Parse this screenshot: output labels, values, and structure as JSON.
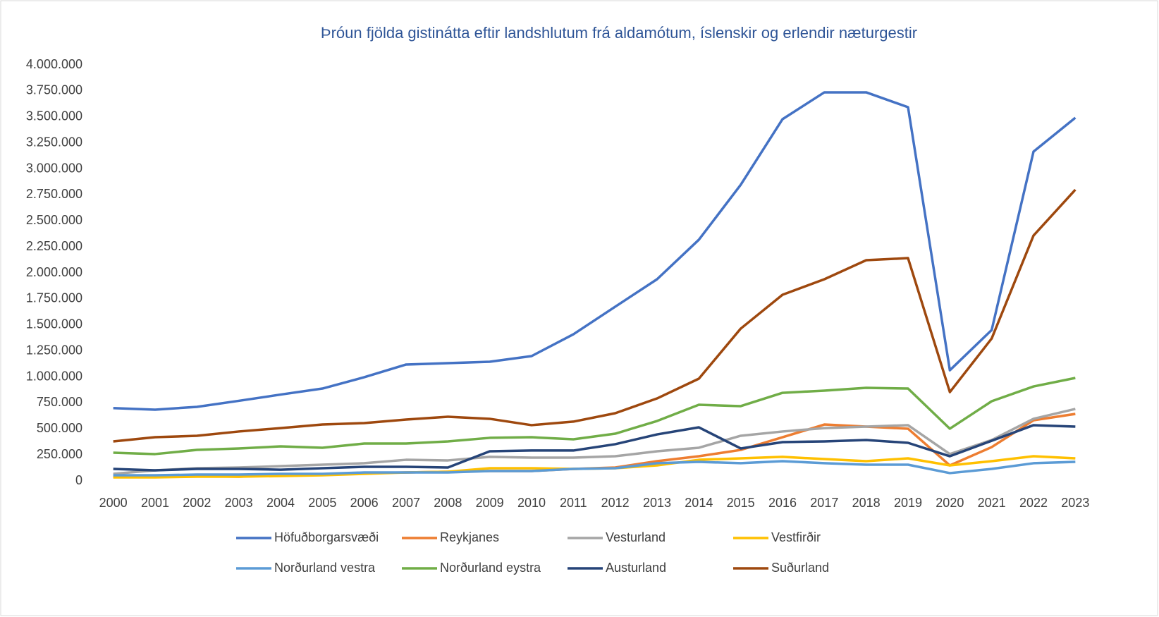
{
  "chart_data": {
    "type": "line",
    "title": "Þróun fjölda gistinátta eftir landshlutum frá aldamótum, íslenskir og erlendir næturgestir",
    "categories": [
      "2000",
      "2001",
      "2002",
      "2003",
      "2004",
      "2005",
      "2006",
      "2007",
      "2008",
      "2009",
      "2010",
      "2011",
      "2012",
      "2013",
      "2014",
      "2015",
      "2016",
      "2017",
      "2018",
      "2019",
      "2020",
      "2021",
      "2022",
      "2023"
    ],
    "ylim": [
      0,
      4000000
    ],
    "yticks": [
      0,
      {
        "value": 250000,
        "label": "250.000"
      },
      {
        "value": 500000,
        "label": "500.000"
      },
      {
        "value": 750000,
        "label": "750.000"
      },
      {
        "value": 1000000,
        "label": "1.000.000"
      },
      {
        "value": 1250000,
        "label": "1.250.000"
      },
      {
        "value": 1500000,
        "label": "1.500.000"
      },
      {
        "value": 1750000,
        "label": "1.750.000"
      },
      {
        "value": 2000000,
        "label": "2.000.000"
      },
      {
        "value": 2250000,
        "label": "2.250.000"
      },
      {
        "value": 2500000,
        "label": "2.500.000"
      },
      {
        "value": 2750000,
        "label": "2.750.000"
      },
      {
        "value": 3000000,
        "label": "3.000.000"
      },
      {
        "value": 3250000,
        "label": "3.250.000"
      },
      {
        "value": 3500000,
        "label": "3.500.000"
      },
      {
        "value": 3750000,
        "label": "3.750.000"
      },
      {
        "value": 4000000,
        "label": "4.000.000"
      }
    ],
    "grid": false,
    "legend": "bottom",
    "series": [
      {
        "name": "Höfuðborgarsvæði",
        "color": "#4472c4",
        "values": [
          700000,
          685000,
          712000,
          770000,
          830000,
          888000,
          997000,
          1119000,
          1132000,
          1146000,
          1200000,
          1410000,
          1675000,
          1939000,
          2319000,
          2847000,
          3478000,
          3736000,
          3736000,
          3593000,
          1064000,
          1451000,
          3166000,
          3492000
        ]
      },
      {
        "name": "Reykjanes",
        "color": "#ed7d31",
        "values": [
          41000,
          41000,
          47000,
          41000,
          54000,
          61000,
          75000,
          81000,
          88000,
          95000,
          95000,
          115000,
          129000,
          190000,
          237000,
          298000,
          420000,
          542000,
          522000,
          502000,
          149000,
          325000,
          583000,
          644000
        ]
      },
      {
        "name": "Vesturland",
        "color": "#a5a5a5",
        "values": [
          68000,
          102000,
          122000,
          129000,
          142000,
          156000,
          170000,
          203000,
          197000,
          231000,
          224000,
          224000,
          237000,
          285000,
          319000,
          434000,
          475000,
          508000,
          522000,
          536000,
          258000,
          393000,
          597000,
          692000
        ]
      },
      {
        "name": "Vestfirðir",
        "color": "#ffc000",
        "values": [
          34000,
          34000,
          41000,
          41000,
          47000,
          54000,
          68000,
          81000,
          88000,
          122000,
          122000,
          115000,
          122000,
          149000,
          203000,
          217000,
          231000,
          210000,
          190000,
          217000,
          149000,
          190000,
          237000,
          217000
        ]
      },
      {
        "name": "Norðurland vestra",
        "color": "#5b9bd5",
        "values": [
          54000,
          54000,
          61000,
          61000,
          68000,
          68000,
          81000,
          81000,
          81000,
          95000,
          95000,
          115000,
          122000,
          170000,
          183000,
          170000,
          190000,
          170000,
          156000,
          156000,
          75000,
          115000,
          170000,
          183000
        ]
      },
      {
        "name": "Norðurland eystra",
        "color": "#70ad47",
        "values": [
          271000,
          258000,
          298000,
          312000,
          332000,
          319000,
          359000,
          359000,
          380000,
          414000,
          420000,
          400000,
          454000,
          576000,
          732000,
          719000,
          847000,
          868000,
          895000,
          888000,
          502000,
          766000,
          908000,
          990000
        ]
      },
      {
        "name": "Austurland",
        "color": "#264478",
        "values": [
          115000,
          102000,
          115000,
          115000,
          108000,
          122000,
          136000,
          136000,
          129000,
          285000,
          292000,
          292000,
          353000,
          447000,
          515000,
          312000,
          373000,
          380000,
          393000,
          366000,
          237000,
          386000,
          536000,
          522000
        ]
      },
      {
        "name": "Suðurland",
        "color": "#9e480e",
        "values": [
          380000,
          420000,
          434000,
          475000,
          508000,
          542000,
          556000,
          590000,
          617000,
          597000,
          536000,
          570000,
          651000,
          793000,
          983000,
          1464000,
          1790000,
          1939000,
          2122000,
          2142000,
          854000,
          1369000,
          2359000,
          2800000
        ]
      }
    ]
  }
}
